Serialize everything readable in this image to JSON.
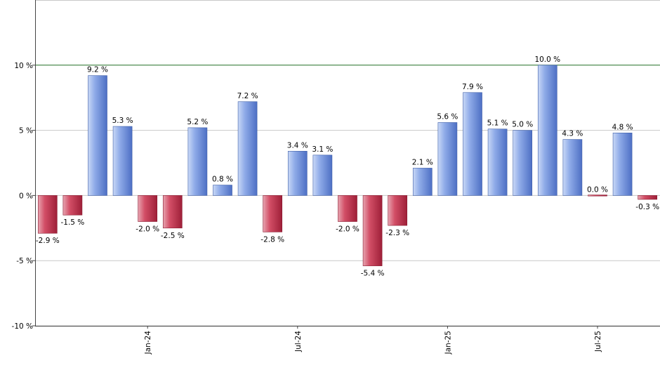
{
  "chart_data": {
    "type": "bar",
    "title": "",
    "xlabel": "",
    "ylabel": "",
    "ylim": [
      -10,
      15
    ],
    "y_ticks": [
      -10,
      -5,
      0,
      5,
      10
    ],
    "y_tick_suffix": " %",
    "x_ticks": [
      {
        "label": "Jan-24",
        "at_bar": 4
      },
      {
        "label": "Jul-24",
        "at_bar": 10
      },
      {
        "label": "Jan-25",
        "at_bar": 16
      },
      {
        "label": "Jul-25",
        "at_bar": 22
      }
    ],
    "reference_line": {
      "value": 10,
      "color": "#2e7d32"
    },
    "grid": true,
    "colors": {
      "positive": "#6f8fd8",
      "negative": "#c8324e"
    },
    "values": [
      -2.9,
      -1.5,
      9.2,
      5.3,
      -2.0,
      -2.5,
      5.2,
      0.8,
      7.2,
      -2.8,
      3.4,
      3.1,
      -2.0,
      -5.4,
      -2.3,
      2.1,
      5.6,
      7.9,
      5.1,
      5.0,
      10.0,
      4.3,
      0.0,
      4.8,
      -0.3
    ],
    "data_labels": [
      "-2.9 %",
      "-1.5 %",
      "9.2 %",
      "5.3 %",
      "-2.0 %",
      "-2.5 %",
      "5.2 %",
      "0.8 %",
      "7.2 %",
      "-2.8 %",
      "3.4 %",
      "3.1 %",
      "-2.0 %",
      "-5.4 %",
      "-2.3 %",
      "2.1 %",
      "5.6 %",
      "7.9 %",
      "5.1 %",
      "5.0 %",
      "10.0 %",
      "4.3 %",
      "0.0 %",
      "4.8 %",
      "-0.3 %"
    ]
  }
}
